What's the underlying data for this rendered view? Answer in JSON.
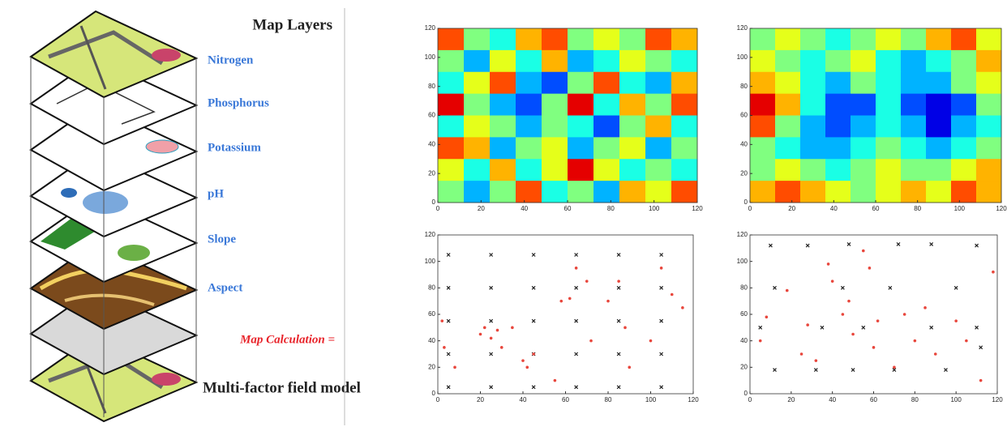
{
  "diagram": {
    "title": "Map Layers",
    "layers": [
      "Nitrogen",
      "Phosphorus",
      "Potassium",
      "pH",
      "Slope",
      "Aspect"
    ],
    "calculation": "Map Calculation =",
    "result": "Multi-factor field model"
  },
  "chart_data": [
    {
      "type": "heatmap",
      "xlim": [
        0,
        120
      ],
      "ylim": [
        0,
        120
      ],
      "xticks": [
        0,
        20,
        40,
        60,
        80,
        100,
        120
      ],
      "yticks": [
        0,
        20,
        40,
        60,
        80,
        100,
        120
      ],
      "z": [
        [
          0.8,
          0.5,
          0.4,
          0.7,
          0.8,
          0.5,
          0.6,
          0.5,
          0.8,
          0.7
        ],
        [
          0.5,
          0.3,
          0.6,
          0.4,
          0.7,
          0.3,
          0.4,
          0.6,
          0.5,
          0.4
        ],
        [
          0.4,
          0.6,
          0.8,
          0.3,
          0.2,
          0.5,
          0.8,
          0.4,
          0.3,
          0.7
        ],
        [
          0.9,
          0.5,
          0.3,
          0.2,
          0.5,
          0.9,
          0.4,
          0.7,
          0.5,
          0.8
        ],
        [
          0.4,
          0.6,
          0.5,
          0.3,
          0.5,
          0.4,
          0.2,
          0.5,
          0.7,
          0.4
        ],
        [
          0.8,
          0.7,
          0.3,
          0.5,
          0.6,
          0.3,
          0.5,
          0.6,
          0.3,
          0.5
        ],
        [
          0.6,
          0.4,
          0.7,
          0.4,
          0.6,
          0.9,
          0.6,
          0.4,
          0.5,
          0.4
        ],
        [
          0.5,
          0.3,
          0.5,
          0.8,
          0.4,
          0.5,
          0.3,
          0.7,
          0.6,
          0.8
        ]
      ]
    },
    {
      "type": "heatmap",
      "xlim": [
        0,
        120
      ],
      "ylim": [
        0,
        120
      ],
      "xticks": [
        0,
        20,
        40,
        60,
        80,
        100,
        120
      ],
      "yticks": [
        0,
        20,
        40,
        60,
        80,
        100,
        120
      ],
      "z": [
        [
          0.5,
          0.6,
          0.5,
          0.4,
          0.5,
          0.6,
          0.5,
          0.7,
          0.8,
          0.6
        ],
        [
          0.6,
          0.5,
          0.4,
          0.5,
          0.6,
          0.4,
          0.3,
          0.4,
          0.5,
          0.7
        ],
        [
          0.7,
          0.6,
          0.4,
          0.3,
          0.5,
          0.4,
          0.3,
          0.3,
          0.5,
          0.6
        ],
        [
          0.9,
          0.7,
          0.4,
          0.2,
          0.2,
          0.4,
          0.2,
          0.1,
          0.2,
          0.5
        ],
        [
          0.8,
          0.5,
          0.3,
          0.2,
          0.3,
          0.4,
          0.3,
          0.1,
          0.3,
          0.4
        ],
        [
          0.5,
          0.4,
          0.3,
          0.3,
          0.4,
          0.5,
          0.4,
          0.3,
          0.4,
          0.5
        ],
        [
          0.5,
          0.6,
          0.5,
          0.4,
          0.5,
          0.6,
          0.5,
          0.5,
          0.6,
          0.7
        ],
        [
          0.7,
          0.8,
          0.7,
          0.6,
          0.5,
          0.6,
          0.7,
          0.6,
          0.8,
          0.7
        ]
      ]
    },
    {
      "type": "scatter",
      "xlim": [
        0,
        120
      ],
      "ylim": [
        0,
        120
      ],
      "xticks": [
        0,
        20,
        40,
        60,
        80,
        100,
        120
      ],
      "yticks": [
        0,
        20,
        40,
        60,
        80,
        100,
        120
      ],
      "series": [
        {
          "color": "#222222",
          "marker": "x",
          "x": [
            5,
            25,
            45,
            65,
            85,
            105,
            5,
            25,
            45,
            65,
            85,
            105,
            5,
            25,
            45,
            65,
            85,
            105,
            5,
            25,
            45,
            65,
            85,
            105,
            5,
            25,
            45,
            65,
            85,
            105
          ],
          "y": [
            5,
            5,
            5,
            5,
            5,
            5,
            30,
            30,
            30,
            30,
            30,
            30,
            55,
            55,
            55,
            55,
            55,
            55,
            80,
            80,
            80,
            80,
            80,
            80,
            105,
            105,
            105,
            105,
            105,
            105
          ]
        },
        {
          "color": "#e8463c",
          "marker": "dot",
          "x": [
            2,
            3,
            8,
            20,
            22,
            25,
            28,
            30,
            35,
            40,
            42,
            45,
            55,
            58,
            62,
            65,
            70,
            72,
            80,
            85,
            88,
            90,
            100,
            105,
            110,
            115
          ],
          "y": [
            55,
            35,
            20,
            45,
            50,
            42,
            48,
            35,
            50,
            25,
            20,
            30,
            10,
            70,
            72,
            95,
            85,
            40,
            70,
            85,
            50,
            20,
            40,
            95,
            75,
            65
          ]
        }
      ]
    },
    {
      "type": "scatter",
      "xlim": [
        0,
        120
      ],
      "ylim": [
        0,
        120
      ],
      "xticks": [
        0,
        20,
        40,
        60,
        80,
        100,
        120
      ],
      "yticks": [
        0,
        20,
        40,
        60,
        80,
        100,
        120
      ],
      "series": [
        {
          "color": "#222222",
          "marker": "x",
          "x": [
            10,
            28,
            48,
            72,
            88,
            110,
            12,
            45,
            68,
            100,
            5,
            35,
            55,
            88,
            110,
            12,
            32,
            50,
            70,
            95,
            112
          ],
          "y": [
            112,
            112,
            113,
            113,
            113,
            112,
            80,
            80,
            80,
            80,
            50,
            50,
            50,
            50,
            50,
            18,
            18,
            18,
            18,
            18,
            35
          ]
        },
        {
          "color": "#e8463c",
          "marker": "dot",
          "x": [
            5,
            8,
            18,
            25,
            28,
            32,
            38,
            40,
            45,
            48,
            50,
            55,
            58,
            60,
            62,
            70,
            75,
            80,
            85,
            90,
            100,
            105,
            112,
            118
          ],
          "y": [
            40,
            58,
            78,
            30,
            52,
            25,
            98,
            85,
            60,
            70,
            45,
            108,
            95,
            35,
            55,
            20,
            60,
            40,
            65,
            30,
            55,
            40,
            10,
            92
          ]
        }
      ]
    }
  ]
}
